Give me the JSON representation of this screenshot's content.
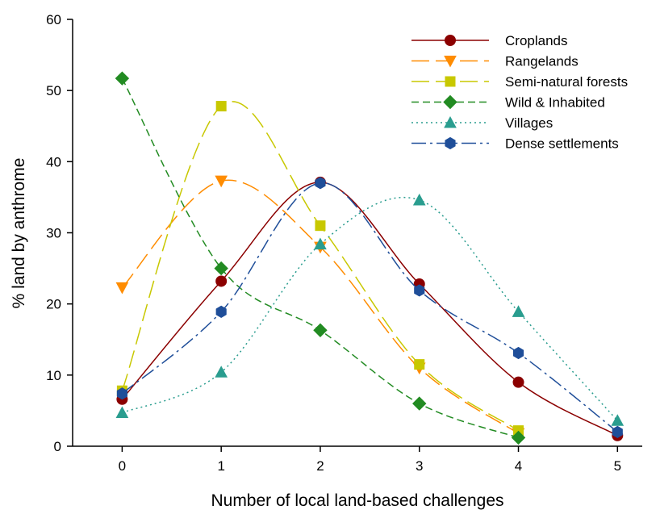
{
  "chart_data": {
    "type": "line",
    "xlabel": "Number of local land-based challenges",
    "ylabel": "% land by anthrome",
    "xlim": [
      -0.5,
      5.25
    ],
    "ylim": [
      0,
      60
    ],
    "x_ticks": [
      "0",
      "1",
      "2",
      "3",
      "4",
      "5"
    ],
    "y_ticks": [
      "0",
      "10",
      "20",
      "30",
      "40",
      "50",
      "60"
    ],
    "grid": false,
    "legend_position": "top-right",
    "series": [
      {
        "name": "Croplands",
        "x": [
          0,
          1,
          2,
          3,
          4,
          5
        ],
        "values": [
          6.6,
          23.2,
          37.1,
          22.8,
          9.0,
          1.5
        ],
        "color": "#8b0000",
        "marker": "circle",
        "dash": ""
      },
      {
        "name": "Rangelands",
        "x": [
          0,
          1,
          2,
          3,
          4
        ],
        "values": [
          22.3,
          37.3,
          28.0,
          11.0,
          1.8
        ],
        "color": "#ff8c00",
        "marker": "triangle-down",
        "dash": "22 8"
      },
      {
        "name": "Semi-natural forests",
        "x": [
          0,
          1,
          2,
          3,
          4
        ],
        "values": [
          7.8,
          47.8,
          31.0,
          11.5,
          2.2
        ],
        "color": "#c8c800",
        "marker": "square",
        "dash": "22 8"
      },
      {
        "name": "Wild & Inhabited",
        "x": [
          0,
          1,
          2,
          3,
          4
        ],
        "values": [
          51.7,
          25.0,
          16.3,
          6.0,
          1.2
        ],
        "color": "#228b22",
        "marker": "diamond",
        "dash": "9 5"
      },
      {
        "name": "Villages",
        "x": [
          0,
          1,
          2,
          3,
          4,
          5
        ],
        "values": [
          4.7,
          10.4,
          28.4,
          34.6,
          18.9,
          3.6
        ],
        "color": "#2a9d8f",
        "marker": "triangle-up",
        "dash": "2 4"
      },
      {
        "name": "Dense settlements",
        "x": [
          0,
          1,
          2,
          3,
          4,
          5
        ],
        "values": [
          7.4,
          18.9,
          37.0,
          21.9,
          13.1,
          2.0
        ],
        "color": "#1f4e99",
        "marker": "hexagon",
        "dash": "18 5 3 5"
      }
    ]
  }
}
